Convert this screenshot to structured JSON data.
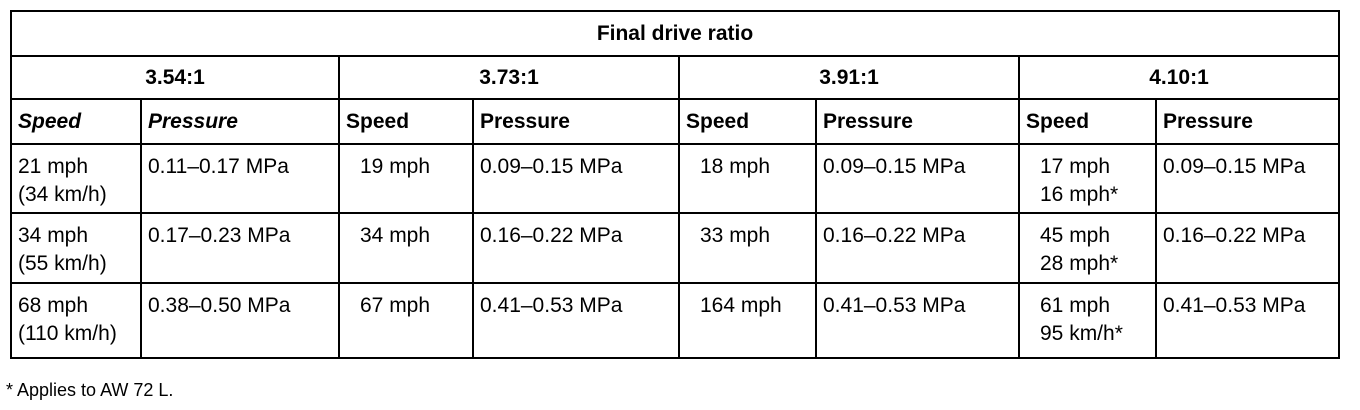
{
  "table": {
    "title": "Final drive ratio",
    "groups": [
      "3.54:1",
      "3.73:1",
      "3.91:1",
      "4.10:1"
    ],
    "subheaders": [
      "Speed",
      "Pressure",
      "Speed",
      "Pressure",
      "Speed",
      "Pressure",
      "Speed",
      "Pressure"
    ],
    "rows": [
      [
        [
          "21 mph",
          "(34 km/h)"
        ],
        [
          "0.11–0.17 MPa"
        ],
        [
          "19 mph"
        ],
        [
          "0.09–0.15 MPa"
        ],
        [
          "18 mph"
        ],
        [
          "0.09–0.15 MPa"
        ],
        [
          "17 mph",
          "16 mph*"
        ],
        [
          "0.09–0.15 MPa"
        ]
      ],
      [
        [
          "34 mph",
          "(55 km/h)"
        ],
        [
          "0.17–0.23 MPa"
        ],
        [
          "34 mph"
        ],
        [
          "0.16–0.22 MPa"
        ],
        [
          "33 mph"
        ],
        [
          "0.16–0.22 MPa"
        ],
        [
          "45 mph",
          "28 mph*"
        ],
        [
          "0.16–0.22 MPa"
        ]
      ],
      [
        [
          "68 mph",
          "(110 km/h)"
        ],
        [
          "0.38–0.50 MPa"
        ],
        [
          "67 mph"
        ],
        [
          "0.41–0.53 MPa"
        ],
        [
          "164 mph"
        ],
        [
          "0.41–0.53 MPa"
        ],
        [
          "61 mph",
          "95 km/h*"
        ],
        [
          "0.41–0.53 MPa"
        ]
      ]
    ]
  },
  "footnote": "* Applies to AW 72 L."
}
